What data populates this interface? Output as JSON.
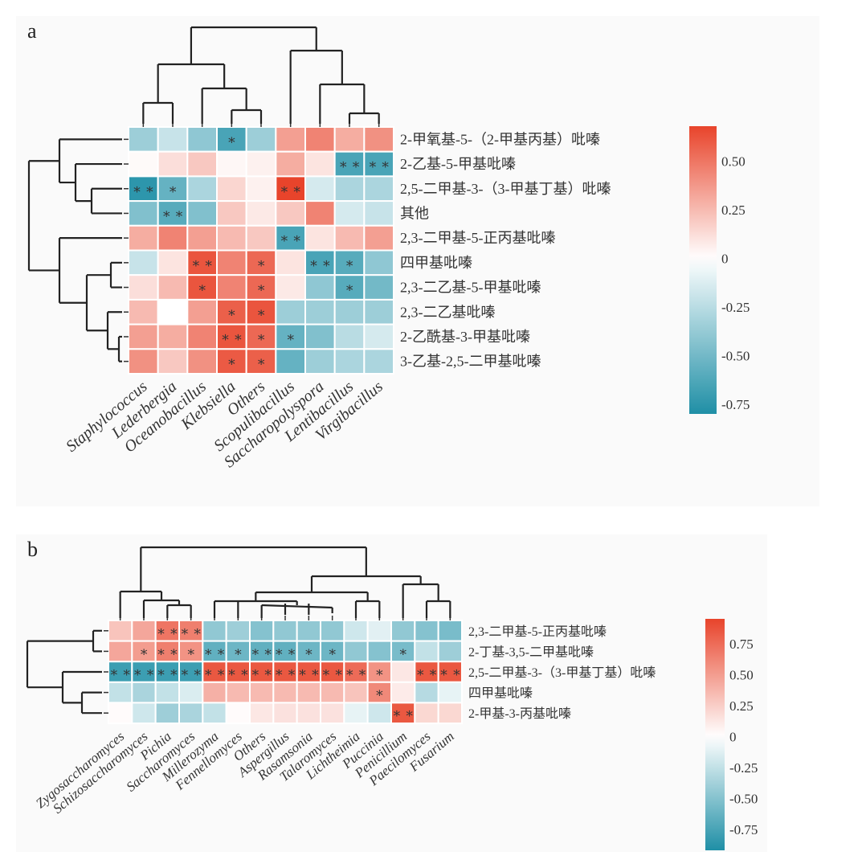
{
  "chart_data": [
    {
      "type": "heatmap",
      "panel_label": "a",
      "title": "",
      "xlabel": "",
      "ylabel": "",
      "columns": [
        "Staphylococcus",
        "Lederbergia",
        "Oceanobacillus",
        "Klebsiella",
        "Others",
        "Scopulibacillus",
        "Saccharopolyspora",
        "Lentibacillus",
        "Virgibacillus"
      ],
      "rows": [
        "2-甲氧基-5-（2-甲基丙基）吡嗪",
        "2-乙基-5-甲基吡嗪",
        "2,5-二甲基-3-（3-甲基丁基）吡嗪",
        "其他",
        "2,3-二甲基-5-正丙基吡嗪",
        "四甲基吡嗪",
        "2,3-二乙基-5-甲基吡嗪",
        "2,3-二乙基吡嗪",
        "2-乙酰基-3-甲基吡嗪",
        "3-乙基-2,5-二甲基吡嗪"
      ],
      "values": [
        [
          -0.35,
          -0.2,
          -0.4,
          -0.65,
          -0.35,
          0.35,
          0.45,
          0.3,
          0.4
        ],
        [
          0.02,
          0.12,
          0.2,
          0.03,
          0.05,
          0.3,
          0.1,
          -0.65,
          -0.65
        ],
        [
          -0.75,
          -0.55,
          -0.3,
          0.15,
          0.05,
          0.68,
          -0.15,
          -0.3,
          -0.3
        ],
        [
          -0.45,
          -0.6,
          -0.45,
          0.2,
          0.08,
          0.2,
          0.45,
          -0.15,
          -0.2
        ],
        [
          0.3,
          0.45,
          0.35,
          0.25,
          0.2,
          -0.65,
          0.1,
          0.25,
          0.35
        ],
        [
          -0.2,
          0.1,
          0.62,
          0.45,
          0.55,
          0.1,
          -0.65,
          -0.6,
          -0.4
        ],
        [
          0.12,
          0.25,
          0.62,
          0.45,
          0.55,
          0.08,
          -0.4,
          -0.6,
          -0.5
        ],
        [
          0.25,
          0.0,
          0.35,
          0.58,
          0.62,
          -0.35,
          -0.35,
          -0.35,
          -0.35
        ],
        [
          0.35,
          0.3,
          0.45,
          0.62,
          0.55,
          -0.55,
          -0.45,
          -0.25,
          -0.15
        ],
        [
          0.4,
          0.2,
          0.4,
          0.6,
          0.58,
          -0.55,
          -0.35,
          -0.3,
          -0.3
        ]
      ],
      "significance": [
        [
          "",
          "",
          "",
          "*",
          "",
          "",
          "",
          "",
          ""
        ],
        [
          "",
          "",
          "",
          "",
          "",
          "",
          "",
          "**",
          "**"
        ],
        [
          "**",
          "*",
          "",
          "",
          "",
          "**",
          "",
          "",
          ""
        ],
        [
          "",
          "**",
          "",
          "",
          "",
          "",
          "",
          "",
          ""
        ],
        [
          "",
          "",
          "",
          "",
          "",
          "**",
          "",
          "",
          ""
        ],
        [
          "",
          "",
          "**",
          "",
          "*",
          "",
          "**",
          "*",
          ""
        ],
        [
          "",
          "",
          "*",
          "",
          "*",
          "",
          "",
          "*",
          ""
        ],
        [
          "",
          "",
          "",
          "*",
          "*",
          "",
          "",
          "",
          ""
        ],
        [
          "",
          "",
          "",
          "**",
          "*",
          "*",
          "",
          "",
          ""
        ],
        [
          "",
          "",
          "",
          "*",
          "*",
          "",
          "",
          "",
          ""
        ]
      ],
      "colorbar": {
        "ticks": [
          "0.50",
          "0.25",
          "0",
          "-0.25",
          "-0.50",
          "-0.75"
        ],
        "tick_values": [
          0.5,
          0.25,
          0,
          -0.25,
          -0.5,
          -0.75
        ],
        "range": [
          -0.8,
          0.68
        ]
      },
      "colors": {
        "negative": "#1f8fa6",
        "zero": "#ffffff",
        "positive": "#e8442b"
      }
    },
    {
      "type": "heatmap",
      "panel_label": "b",
      "title": "",
      "xlabel": "",
      "ylabel": "",
      "columns": [
        "Zygosaccharomyces",
        "Schizosaccharomyces",
        "Pichia",
        "Saccharomyces",
        "Millerozyma",
        "Fennellomyces",
        "Others",
        "Aspergillus",
        "Rasamsonia",
        "Talaromyces",
        "Lichtheimia",
        "Puccinia",
        "Penicillium",
        "Paecilomyces",
        "Fusarium"
      ],
      "rows": [
        "2,3-二甲基-5-正丙基吡嗪",
        "2-丁基-3,5-二甲基吡嗪",
        "2,5-二甲基-3-（3-甲基丁基）吡嗪",
        "四甲基吡嗪",
        "2-甲基-3-丙基吡嗪"
      ],
      "values": [
        [
          0.3,
          0.45,
          0.7,
          0.65,
          -0.45,
          -0.4,
          -0.5,
          -0.45,
          -0.45,
          -0.45,
          -0.2,
          -0.12,
          -0.45,
          -0.5,
          -0.55
        ],
        [
          0.45,
          0.5,
          0.65,
          0.55,
          -0.65,
          -0.6,
          -0.65,
          -0.65,
          -0.6,
          -0.6,
          -0.45,
          -0.5,
          -0.55,
          -0.25,
          -0.4
        ],
        [
          -0.8,
          -0.8,
          -0.8,
          -0.8,
          0.85,
          0.85,
          0.85,
          0.85,
          0.85,
          0.85,
          0.75,
          0.55,
          0.12,
          0.85,
          0.85
        ],
        [
          -0.25,
          -0.35,
          -0.25,
          -0.15,
          0.4,
          0.35,
          0.35,
          0.35,
          0.35,
          0.35,
          0.3,
          0.6,
          0.1,
          -0.3,
          -0.1
        ],
        [
          0.02,
          -0.2,
          -0.4,
          -0.35,
          -0.25,
          0.02,
          0.12,
          0.15,
          0.15,
          0.15,
          -0.1,
          -0.2,
          0.85,
          0.2,
          0.2
        ]
      ],
      "significance": [
        [
          "",
          "",
          "**",
          "**",
          "",
          "",
          "",
          "",
          "",
          "",
          "",
          "",
          "",
          "",
          ""
        ],
        [
          "",
          "*",
          "**",
          "*",
          "**",
          "*",
          "**",
          "**",
          "*",
          "*",
          "",
          "",
          "*",
          "",
          ""
        ],
        [
          "**",
          "**",
          "**",
          "**",
          "**",
          "**",
          "**",
          "**",
          "**",
          "**",
          "**",
          "*",
          "",
          "**",
          "**"
        ],
        [
          "",
          "",
          "",
          "",
          "",
          "",
          "",
          "",
          "",
          "",
          "",
          "*",
          "",
          "",
          ""
        ],
        [
          "",
          "",
          "",
          "",
          "",
          "",
          "",
          "",
          "",
          "",
          "",
          "",
          "**",
          "",
          ""
        ]
      ],
      "colorbar": {
        "ticks": [
          "0.75",
          "0.50",
          "0.25",
          "0",
          "-0.25",
          "-0.50",
          "-0.75"
        ],
        "tick_values": [
          0.75,
          0.5,
          0.25,
          0,
          -0.25,
          -0.5,
          -0.75
        ],
        "range": [
          -0.92,
          0.95
        ]
      },
      "colors": {
        "negative": "#1f8fa6",
        "zero": "#ffffff",
        "positive": "#e8442b"
      }
    }
  ]
}
